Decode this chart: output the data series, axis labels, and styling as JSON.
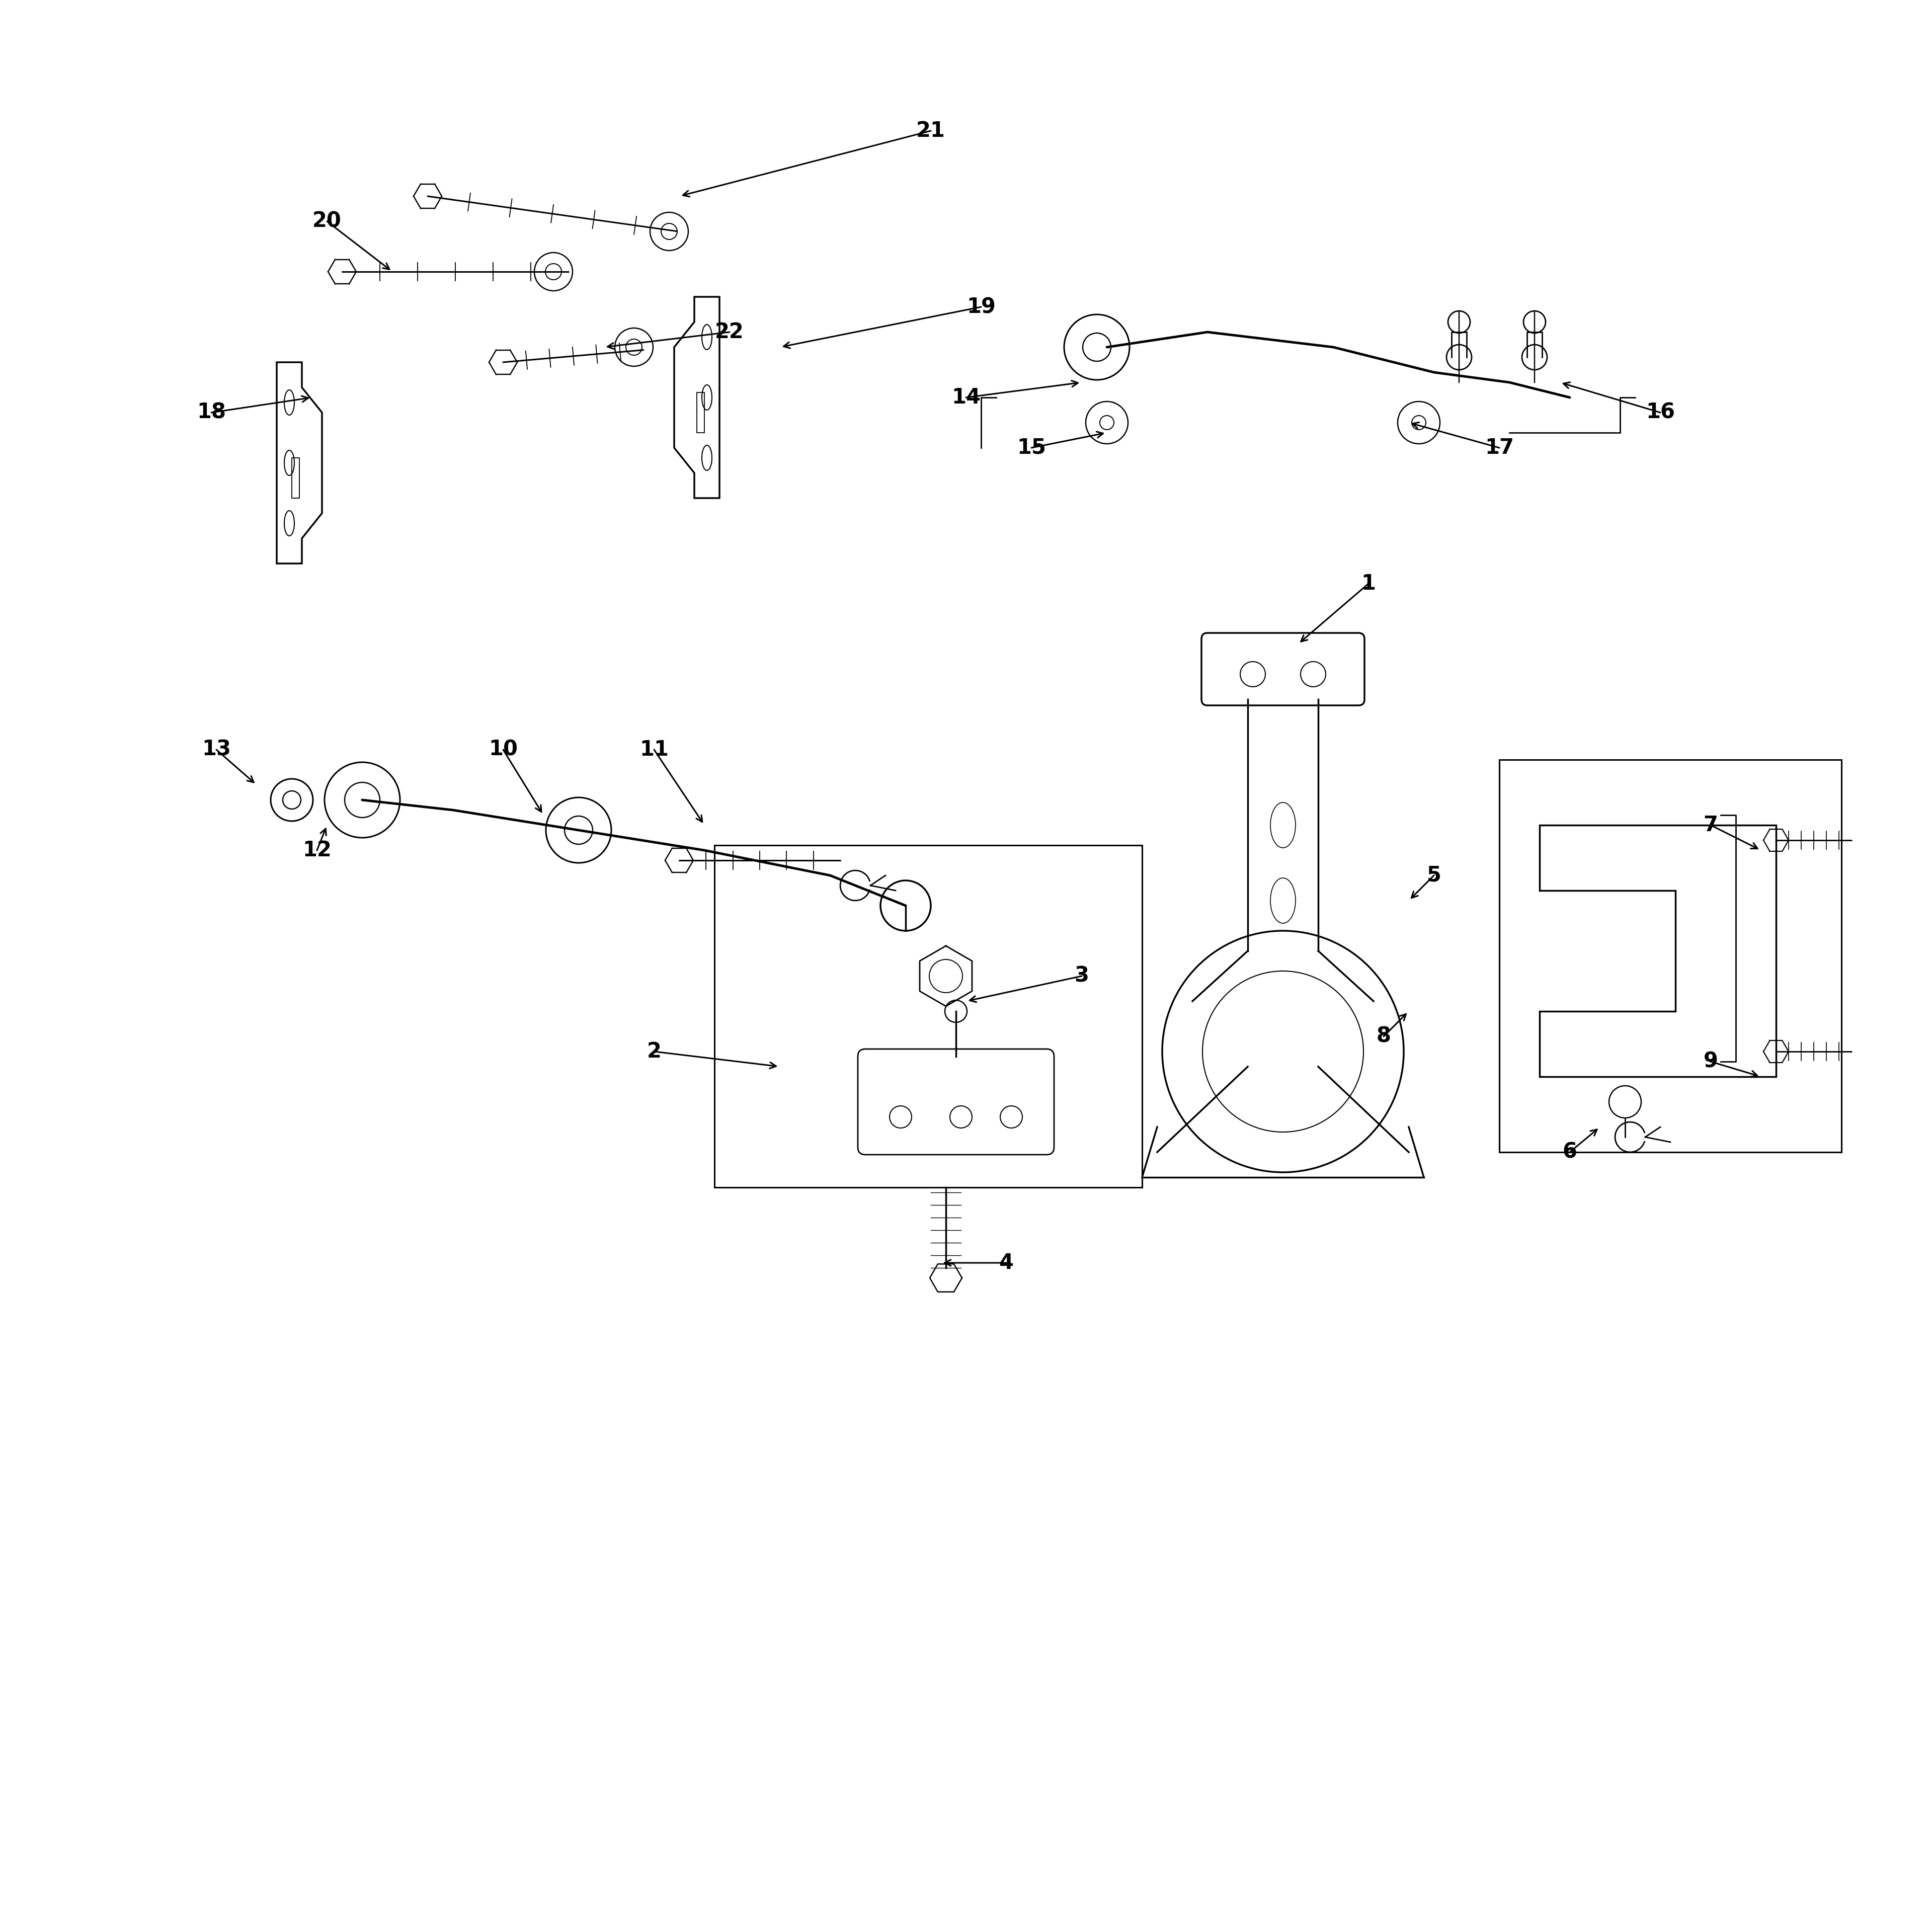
{
  "bg": "#ffffff",
  "lc": "#000000",
  "fig_w": 38.4,
  "fig_h": 38.4,
  "lw": 2.5,
  "fs": 30,
  "label_positions": {
    "1": [
      27.2,
      26.8,
      25.8,
      25.6
    ],
    "2": [
      13.0,
      17.5,
      15.5,
      17.2
    ],
    "3": [
      21.5,
      19.0,
      19.2,
      18.5
    ],
    "4": [
      20.0,
      13.3,
      18.7,
      13.3
    ],
    "5": [
      28.5,
      21.0,
      28.0,
      20.5
    ],
    "6": [
      31.2,
      15.5,
      31.8,
      16.0
    ],
    "7": [
      34.0,
      22.0,
      35.0,
      21.5
    ],
    "8": [
      27.5,
      17.8,
      28.0,
      18.3
    ],
    "9": [
      34.0,
      17.3,
      35.0,
      17.0
    ],
    "10": [
      10.0,
      23.5,
      10.8,
      22.2
    ],
    "11": [
      13.0,
      23.5,
      14.0,
      22.0
    ],
    "12": [
      6.3,
      21.5,
      6.5,
      22.0
    ],
    "13": [
      4.3,
      23.5,
      5.1,
      22.8
    ],
    "14": [
      19.2,
      30.5,
      21.5,
      30.8
    ],
    "15": [
      20.5,
      29.5,
      22.0,
      29.8
    ],
    "16": [
      33.0,
      30.2,
      31.0,
      30.8
    ],
    "17": [
      29.8,
      29.5,
      28.0,
      30.0
    ],
    "18": [
      4.2,
      30.2,
      6.2,
      30.5
    ],
    "19": [
      19.5,
      32.3,
      15.5,
      31.5
    ],
    "20": [
      6.5,
      34.0,
      7.8,
      33.0
    ],
    "21": [
      18.5,
      35.8,
      13.5,
      34.5
    ],
    "22": [
      14.5,
      31.8,
      12.0,
      31.5
    ]
  }
}
